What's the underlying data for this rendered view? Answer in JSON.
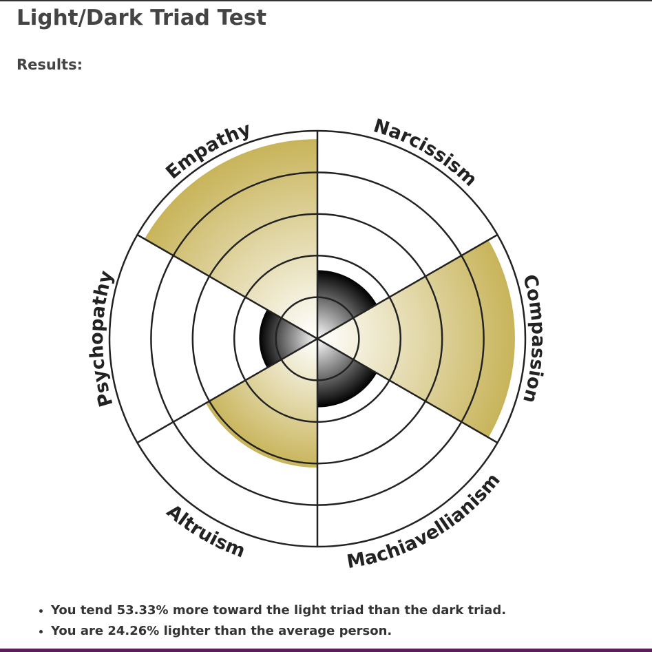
{
  "header": {
    "title": "Light/Dark Triad Test",
    "subtitle": "Results:"
  },
  "chart_data": {
    "type": "polar-area",
    "categories": [
      "Narcissism",
      "Compassion",
      "Machiavellianism",
      "Altruism",
      "Psychopathy",
      "Empathy"
    ],
    "values": [
      1.65,
      4.75,
      1.65,
      3.1,
      1.4,
      4.8
    ],
    "colors": [
      "#000000",
      "#c8b45a",
      "#000000",
      "#c8b45a",
      "#000000",
      "#c8b45a"
    ],
    "rlim": [
      0,
      5
    ],
    "rticks": [
      1,
      2,
      3,
      4,
      5
    ],
    "grid": true
  },
  "results": [
    "You tend 53.33% more toward the light triad than the dark triad.",
    "You are 24.26% lighter than the average person."
  ]
}
